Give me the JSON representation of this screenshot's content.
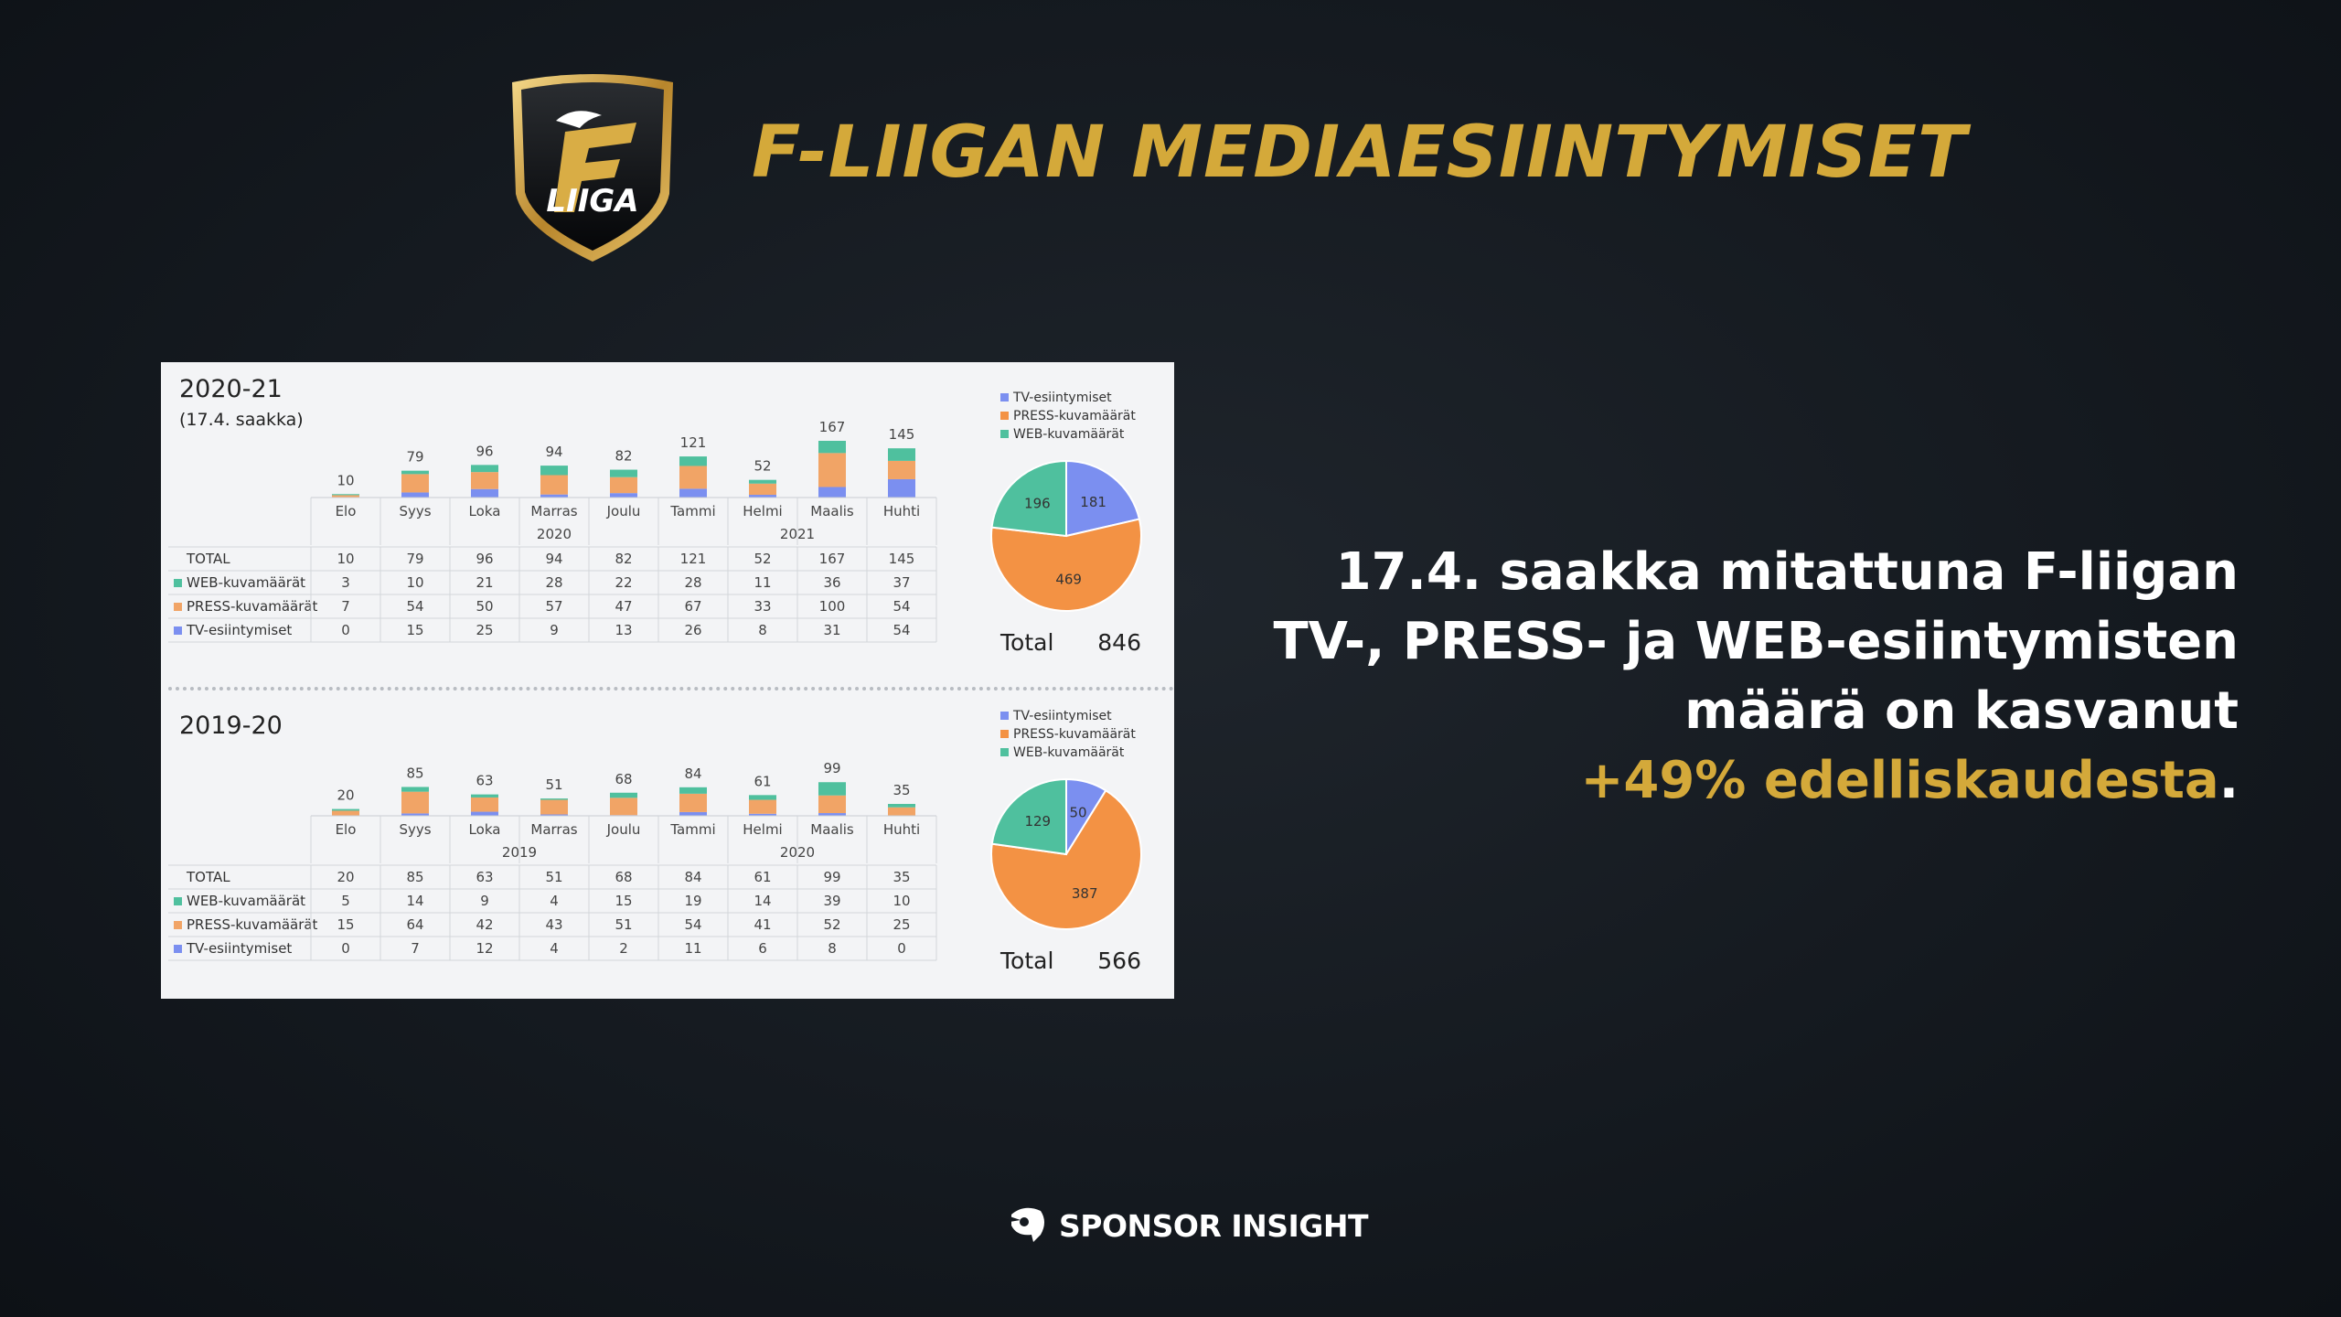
{
  "title": "F-LIIGAN MEDIAESIINTYMISET",
  "logo_text": "LIIGA",
  "colors": {
    "accent": "#d4a93a",
    "tv": "#7b8ff0",
    "press": "#f1a466",
    "press_pie": "#f39244",
    "web": "#4fc09e"
  },
  "headline": {
    "line1": "17.4. saakka mitattuna F-liigan",
    "line2": "TV-, PRESS- ja WEB-esiintymisten",
    "line3": "määrä on kasvanut",
    "accent": "+49% edelliskaudesta",
    "period": "."
  },
  "sponsor": {
    "text": "SPONSOR INSIGHT",
    "icon": "sponsor-insight-icon"
  },
  "chart_data": [
    {
      "type": "bar",
      "title": "2020-21",
      "subtitle": "(17.4. saakka)",
      "categories": [
        "Elo",
        "Syys",
        "Loka",
        "Marras",
        "Joulu",
        "Tammi",
        "Helmi",
        "Maalis",
        "Huhti"
      ],
      "years": [
        {
          "label": "2020",
          "span": [
            2,
            4
          ]
        },
        {
          "label": "2021",
          "span": [
            5,
            8
          ]
        }
      ],
      "stacked": true,
      "totals": [
        10,
        79,
        96,
        94,
        82,
        121,
        52,
        167,
        145
      ],
      "series": [
        {
          "name": "WEB-kuvamäärät",
          "values": [
            3,
            10,
            21,
            28,
            22,
            28,
            11,
            36,
            37
          ],
          "color": "#4fc09e"
        },
        {
          "name": "PRESS-kuvamäärät",
          "values": [
            7,
            54,
            50,
            57,
            47,
            67,
            33,
            100,
            54
          ],
          "color": "#f1a466"
        },
        {
          "name": "TV-esiintymiset",
          "values": [
            0,
            15,
            25,
            9,
            13,
            26,
            8,
            31,
            54
          ],
          "color": "#7b8ff0"
        }
      ],
      "table_total_label": "TOTAL",
      "legend": [
        "TV-esiintymiset",
        "PRESS-kuvamäärät",
        "WEB-kuvamäärät"
      ],
      "pie": {
        "slices": [
          {
            "name": "TV-esiintymiset",
            "value": 181
          },
          {
            "name": "PRESS-kuvamäärät",
            "value": 469
          },
          {
            "name": "WEB-kuvamäärät",
            "value": 196
          }
        ]
      },
      "total_label": "Total",
      "total_value": "846"
    },
    {
      "type": "bar",
      "title": "2019-20",
      "categories": [
        "Elo",
        "Syys",
        "Loka",
        "Marras",
        "Joulu",
        "Tammi",
        "Helmi",
        "Maalis",
        "Huhti"
      ],
      "years": [
        {
          "label": "2019",
          "span": [
            1,
            4
          ]
        },
        {
          "label": "2020",
          "span": [
            5,
            8
          ]
        }
      ],
      "stacked": true,
      "totals": [
        20,
        85,
        63,
        51,
        68,
        84,
        61,
        99,
        35
      ],
      "series": [
        {
          "name": "WEB-kuvamäärät",
          "values": [
            5,
            14,
            9,
            4,
            15,
            19,
            14,
            39,
            10
          ],
          "color": "#4fc09e"
        },
        {
          "name": "PRESS-kuvamäärät",
          "values": [
            15,
            64,
            42,
            43,
            51,
            54,
            41,
            52,
            25
          ],
          "color": "#f1a466"
        },
        {
          "name": "TV-esiintymiset",
          "values": [
            0,
            7,
            12,
            4,
            2,
            11,
            6,
            8,
            0
          ],
          "color": "#7b8ff0"
        }
      ],
      "table_total_label": "TOTAL",
      "legend": [
        "TV-esiintymiset",
        "PRESS-kuvamäärät",
        "WEB-kuvamäärät"
      ],
      "pie": {
        "slices": [
          {
            "name": "TV-esiintymiset",
            "value": 50
          },
          {
            "name": "PRESS-kuvamäärät",
            "value": 387
          },
          {
            "name": "WEB-kuvamäärät",
            "value": 129
          }
        ]
      },
      "total_label": "Total",
      "total_value": "566"
    }
  ]
}
